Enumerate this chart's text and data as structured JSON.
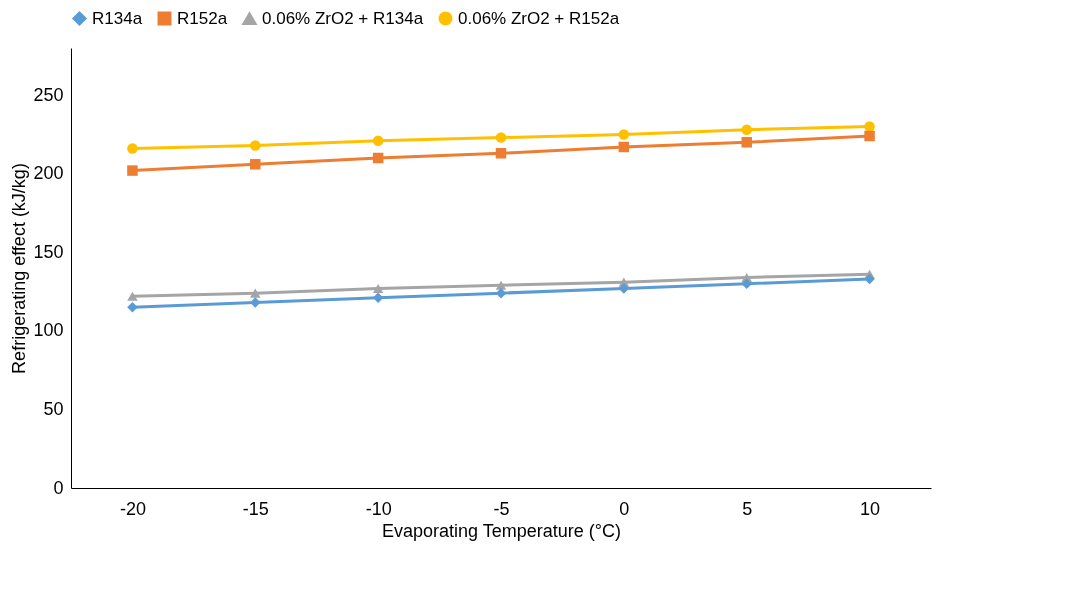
{
  "chart_data": {
    "type": "line",
    "xlabel": "Evaporating Temperature (°C)",
    "ylabel": "Refrigerating effect (kJ/kg)",
    "categories": [
      "-20",
      "-15",
      "-10",
      "-5",
      "0",
      "5",
      "10"
    ],
    "series": [
      {
        "name": "R134a",
        "color": "#5b9bd5",
        "marker": "diamond",
        "values": [
          115,
          118,
          121,
          124,
          127,
          130,
          133
        ]
      },
      {
        "name": "R152a",
        "color": "#ed7d31",
        "marker": "square",
        "values": [
          202,
          206,
          210,
          213,
          217,
          220,
          224
        ]
      },
      {
        "name": "0.06% ZrO2 + R134a",
        "color": "#a5a5a5",
        "marker": "triangle",
        "values": [
          122,
          124,
          127,
          129,
          131,
          134,
          136
        ]
      },
      {
        "name": "0.06% ZrO2 + R152a",
        "color": "#ffc000",
        "marker": "circle",
        "values": [
          216,
          218,
          221,
          223,
          225,
          228,
          230
        ]
      }
    ],
    "ylim": [
      0,
      280
    ],
    "yticks": [
      0,
      50,
      100,
      150,
      200,
      250
    ],
    "grid": false,
    "legend": "top",
    "line_style": "solid"
  }
}
